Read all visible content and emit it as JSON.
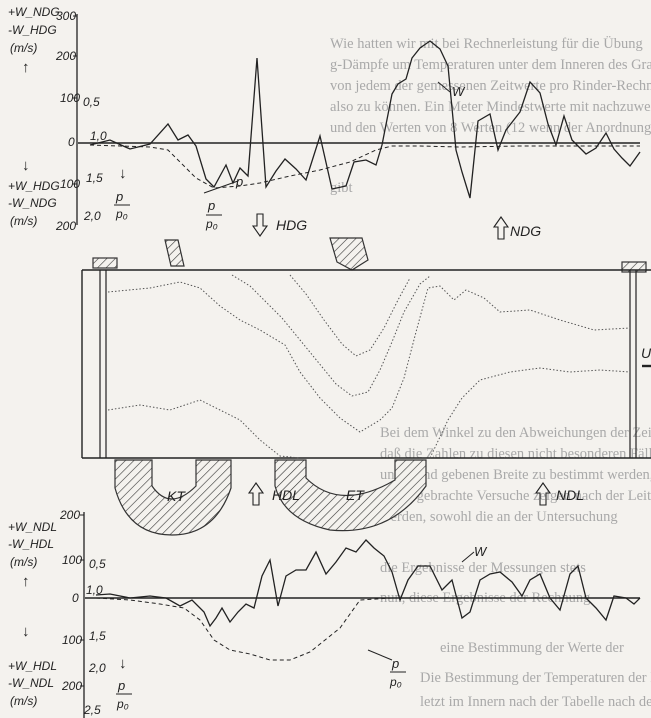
{
  "background_text": [
    "Wie hatten wir mit bei Rechnerleistung für die Übung",
    "g-Dämpfe um Temperaturen unter dem Inneren des Grades, die",
    "von jedem der gemessenen Zeitwerte pro Rinder-Rechnerwerte",
    "also zu können. Ein Meter Mindestwerte mit nachzuweisen",
    "und den Werten von 8 Werten (12 wenn der Anordnung)",
    "gibt",
    "Bei dem Winkel zu den Abweichungen der Zeit diese",
    "daß die Zahlen zu diesen nicht besonderen Fällen",
    "unten und gebenen Breite zu bestimmt werden, mit",
    "zuvor gebrachte Versuche zeigen nach der Leitung",
    "werden, sowohl die an der Untersuchung",
    "die Ergebnisse der Messungen stets",
    "nun, diese Ergebnisse der Rechnung",
    "eine Bestimmung der Werte der",
    "Die Bestimmung der Temperaturen der Meßstellen",
    "letzt im Innern nach der Tabelle nach der"
  ],
  "top_chart": {
    "y_label_pos": "+W_NDG",
    "y_label_neg": "-W_HDG",
    "y_unit": "(m/s)",
    "w_ticks": [
      "300",
      "200",
      "100",
      "0",
      "100",
      "200"
    ],
    "p_ticks": [
      "0,5",
      "1,0",
      "1,5",
      "2,0"
    ],
    "lower_label_pos": "+W_HDG",
    "lower_label_neg": "-W_NDG",
    "w_label": "W",
    "p_label": "p",
    "p0_label": "p₀",
    "up_arrow": "↑",
    "down_arrow": "↓"
  },
  "bottom_chart": {
    "y_label_pos": "+W_NDL",
    "y_label_neg": "-W_HDL",
    "y_unit": "(m/s)",
    "w_ticks": [
      "200",
      "100",
      "0",
      "100",
      "200"
    ],
    "p_ticks": [
      "0,5",
      "1,0",
      "1,5",
      "2,0",
      "2,5"
    ],
    "lower_label_pos": "+W_HDL",
    "lower_label_neg": "-W_NDL",
    "w_label": "W",
    "p_label": "p",
    "p0_label": "p₀"
  },
  "zones": {
    "hdg": "HDG",
    "ndg": "NDG",
    "hdl": "HDL",
    "ndl": "NDL",
    "kt": "KT",
    "et": "ET"
  },
  "edge_label": "U"
}
